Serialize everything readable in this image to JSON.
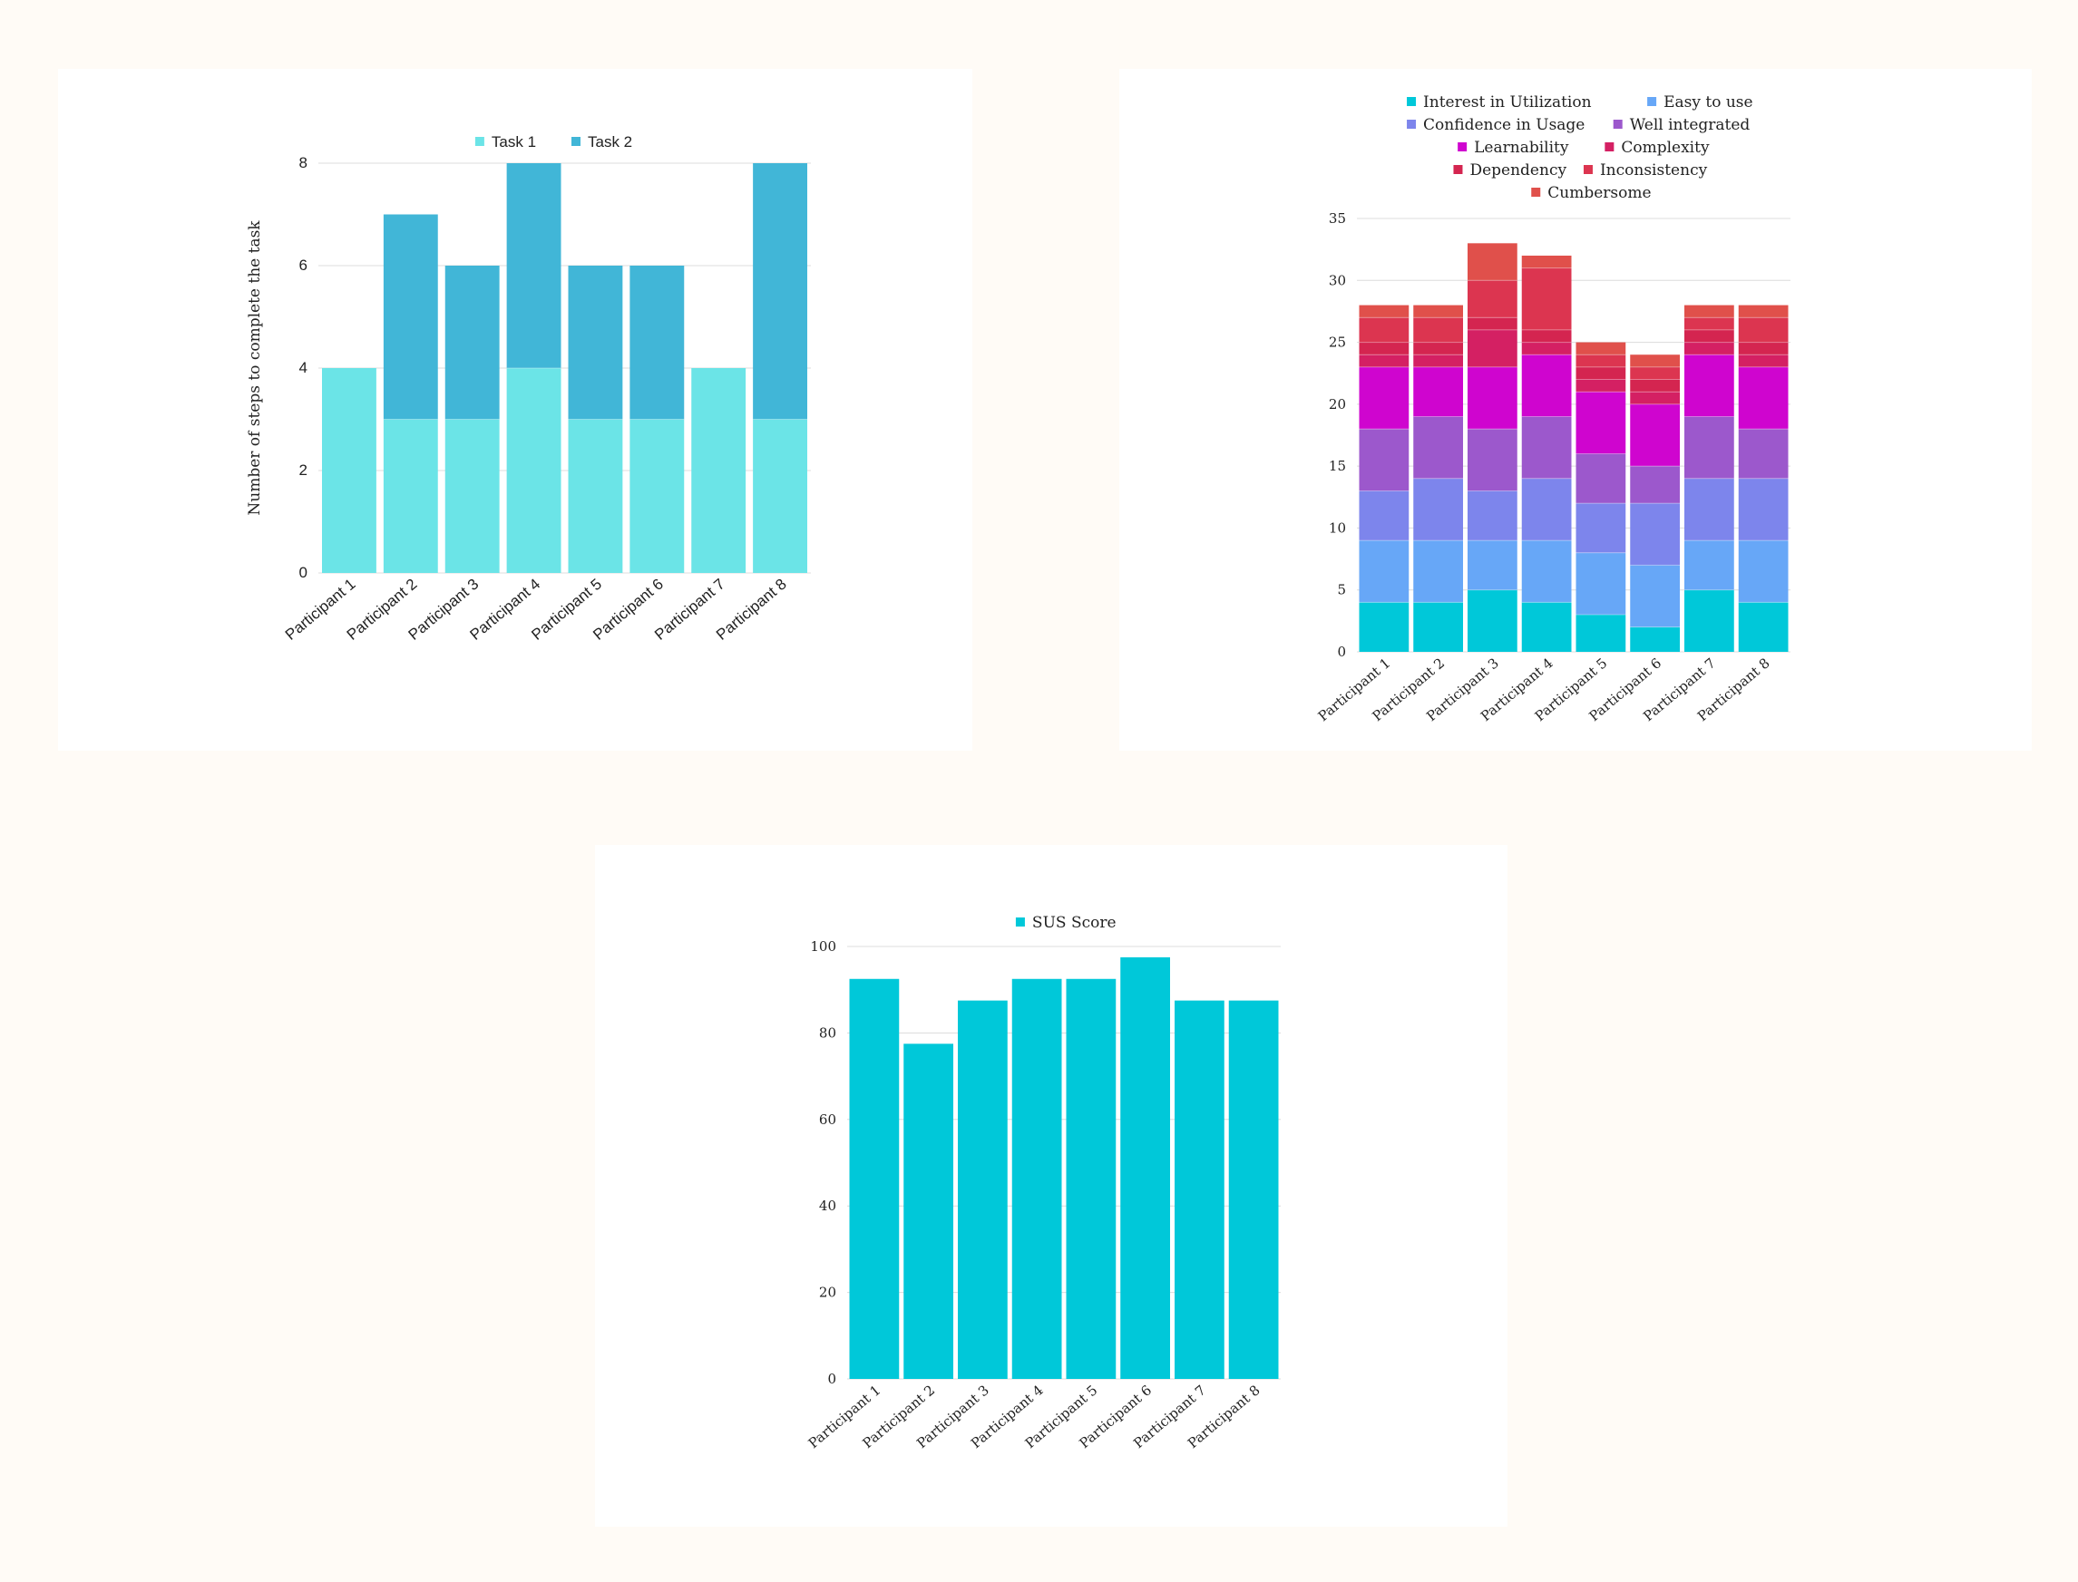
{
  "colors": {
    "background": "#fffbf6",
    "panel": "#ffffff",
    "grid": "#dcdcdc",
    "text": "#222222"
  },
  "chart_data": [
    {
      "id": "steps",
      "type": "bar",
      "stacked": true,
      "title": "",
      "xlabel": "",
      "ylabel": "Number of steps to complete the task",
      "categories": [
        "Participant 1",
        "Participant 2",
        "Participant 3",
        "Participant 4",
        "Participant 5",
        "Participant 6",
        "Participant 7",
        "Participant 8"
      ],
      "series": [
        {
          "name": "Task 1",
          "color": "#6be4e7",
          "values": [
            4,
            3,
            3,
            4,
            3,
            3,
            4,
            3
          ]
        },
        {
          "name": "Task 2",
          "color": "#41b6d7",
          "values": [
            0,
            4,
            3,
            4,
            3,
            3,
            0,
            5
          ]
        }
      ],
      "ylim": [
        0,
        8
      ],
      "yticks": [
        "0",
        "2",
        "4",
        "6",
        "8"
      ],
      "grid": true,
      "legend": "top"
    },
    {
      "id": "usability",
      "type": "bar",
      "stacked": true,
      "title": "",
      "xlabel": "",
      "ylabel": "",
      "categories": [
        "Participant 1",
        "Participant 2",
        "Participant 3",
        "Participant 4",
        "Participant 5",
        "Participant 6",
        "Participant 7",
        "Participant 8"
      ],
      "series": [
        {
          "name": "Interest in Utilization",
          "color": "#00c8d9",
          "values": [
            4,
            4,
            5,
            4,
            3,
            2,
            5,
            4
          ]
        },
        {
          "name": "Easy to use",
          "color": "#67a7f7",
          "values": [
            5,
            5,
            4,
            5,
            5,
            5,
            4,
            5
          ]
        },
        {
          "name": "Confidence in Usage",
          "color": "#7d85ec",
          "values": [
            4,
            5,
            4,
            5,
            4,
            5,
            5,
            5
          ]
        },
        {
          "name": "Well integrated",
          "color": "#9c58cc",
          "values": [
            5,
            5,
            5,
            5,
            4,
            3,
            5,
            4
          ]
        },
        {
          "name": "Learnability",
          "color": "#cf05cf",
          "values": [
            5,
            4,
            5,
            5,
            5,
            5,
            5,
            5
          ]
        },
        {
          "name": "Complexity",
          "color": "#d42063",
          "values": [
            1,
            1,
            3,
            1,
            1,
            1,
            1,
            1
          ]
        },
        {
          "name": "Dependency",
          "color": "#d42550",
          "values": [
            1,
            1,
            1,
            1,
            1,
            1,
            1,
            1
          ]
        },
        {
          "name": "Inconsistency",
          "color": "#dc3550",
          "values": [
            2,
            2,
            3,
            5,
            1,
            1,
            1,
            2
          ]
        },
        {
          "name": "Cumbersome",
          "color": "#e0504b",
          "values": [
            1,
            1,
            3,
            1,
            1,
            1,
            1,
            1
          ]
        }
      ],
      "ylim": [
        0,
        35
      ],
      "yticks": [
        "0",
        "5",
        "10",
        "15",
        "20",
        "25",
        "30",
        "35"
      ],
      "grid": true,
      "legend": "top"
    },
    {
      "id": "sus",
      "type": "bar",
      "stacked": false,
      "title": "",
      "xlabel": "",
      "ylabel": "",
      "categories": [
        "Participant 1",
        "Participant 2",
        "Participant 3",
        "Participant 4",
        "Participant 5",
        "Participant 6",
        "Participant 7",
        "Participant 8"
      ],
      "series": [
        {
          "name": "SUS Score",
          "color": "#00c8d9",
          "values": [
            92.5,
            77.5,
            87.5,
            92.5,
            92.5,
            97.5,
            87.5,
            87.5
          ]
        }
      ],
      "ylim": [
        0,
        100
      ],
      "yticks": [
        "0",
        "20",
        "40",
        "60",
        "80",
        "100"
      ],
      "grid": true,
      "legend": "top"
    }
  ]
}
